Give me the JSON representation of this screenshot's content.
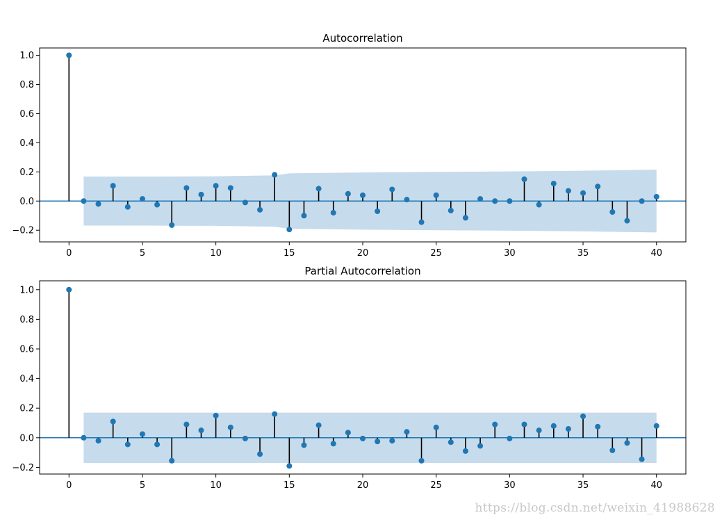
{
  "chart_data": [
    {
      "type": "stem",
      "title": "Autocorrelation",
      "xlim": [
        -2,
        42
      ],
      "ylim": [
        -0.28,
        1.05
      ],
      "xticks": [
        0,
        5,
        10,
        15,
        20,
        25,
        30,
        35,
        40
      ],
      "yticks": [
        -0.2,
        0.0,
        0.2,
        0.4,
        0.6,
        0.8,
        1.0
      ],
      "ytick_labels": [
        "−0.2",
        "0.0",
        "0.2",
        "0.4",
        "0.6",
        "0.8",
        "1.0"
      ],
      "lags": [
        0,
        1,
        2,
        3,
        4,
        5,
        6,
        7,
        8,
        9,
        10,
        11,
        12,
        13,
        14,
        15,
        16,
        17,
        18,
        19,
        20,
        21,
        22,
        23,
        24,
        25,
        26,
        27,
        28,
        29,
        30,
        31,
        32,
        33,
        34,
        35,
        36,
        37,
        38,
        39,
        40
      ],
      "values": [
        1.0,
        0.0,
        -0.02,
        0.105,
        -0.04,
        0.015,
        -0.025,
        -0.165,
        0.09,
        0.045,
        0.105,
        0.09,
        -0.01,
        -0.06,
        0.18,
        -0.195,
        -0.1,
        0.085,
        -0.08,
        0.05,
        0.04,
        -0.07,
        0.08,
        0.01,
        -0.145,
        0.04,
        -0.065,
        -0.115,
        0.015,
        0.0,
        0.0,
        0.15,
        -0.025,
        0.12,
        0.07,
        0.055,
        0.1,
        -0.075,
        -0.135,
        0.0,
        0.03
      ],
      "confint_x": [
        1,
        5,
        10,
        14,
        15,
        20,
        25,
        30,
        35,
        40
      ],
      "confint_upper": [
        0.168,
        0.168,
        0.17,
        0.176,
        0.19,
        0.196,
        0.2,
        0.203,
        0.208,
        0.215
      ],
      "grid": false,
      "colors": {
        "marker": "#1f77b4",
        "stem": "#000000",
        "baseline": "#1f77b4",
        "band": "#c6dbec"
      }
    },
    {
      "type": "stem",
      "title": "Partial Autocorrelation",
      "xlim": [
        -2,
        42
      ],
      "ylim": [
        -0.245,
        1.06
      ],
      "xticks": [
        0,
        5,
        10,
        15,
        20,
        25,
        30,
        35,
        40
      ],
      "yticks": [
        -0.2,
        0.0,
        0.2,
        0.4,
        0.6,
        0.8,
        1.0
      ],
      "ytick_labels": [
        "−0.2",
        "0.0",
        "0.2",
        "0.4",
        "0.6",
        "0.8",
        "1.0"
      ],
      "lags": [
        0,
        1,
        2,
        3,
        4,
        5,
        6,
        7,
        8,
        9,
        10,
        11,
        12,
        13,
        14,
        15,
        16,
        17,
        18,
        19,
        20,
        21,
        22,
        23,
        24,
        25,
        26,
        27,
        28,
        29,
        30,
        31,
        32,
        33,
        34,
        35,
        36,
        37,
        38,
        39,
        40
      ],
      "values": [
        1.0,
        0.0,
        -0.02,
        0.11,
        -0.045,
        0.025,
        -0.045,
        -0.155,
        0.09,
        0.05,
        0.15,
        0.07,
        -0.005,
        -0.11,
        0.16,
        -0.19,
        -0.05,
        0.085,
        -0.04,
        0.035,
        -0.005,
        -0.025,
        -0.02,
        0.04,
        -0.155,
        0.07,
        -0.03,
        -0.09,
        -0.055,
        0.09,
        -0.005,
        0.09,
        0.05,
        0.08,
        0.06,
        0.145,
        0.075,
        -0.085,
        -0.035,
        -0.145,
        0.08
      ],
      "confint_x": [
        1,
        40
      ],
      "confint_upper": [
        0.17,
        0.17
      ],
      "grid": false,
      "colors": {
        "marker": "#1f77b4",
        "stem": "#000000",
        "baseline": "#1f77b4",
        "band": "#c6dbec"
      }
    }
  ],
  "watermark": "https://blog.csdn.net/weixin_41988628"
}
